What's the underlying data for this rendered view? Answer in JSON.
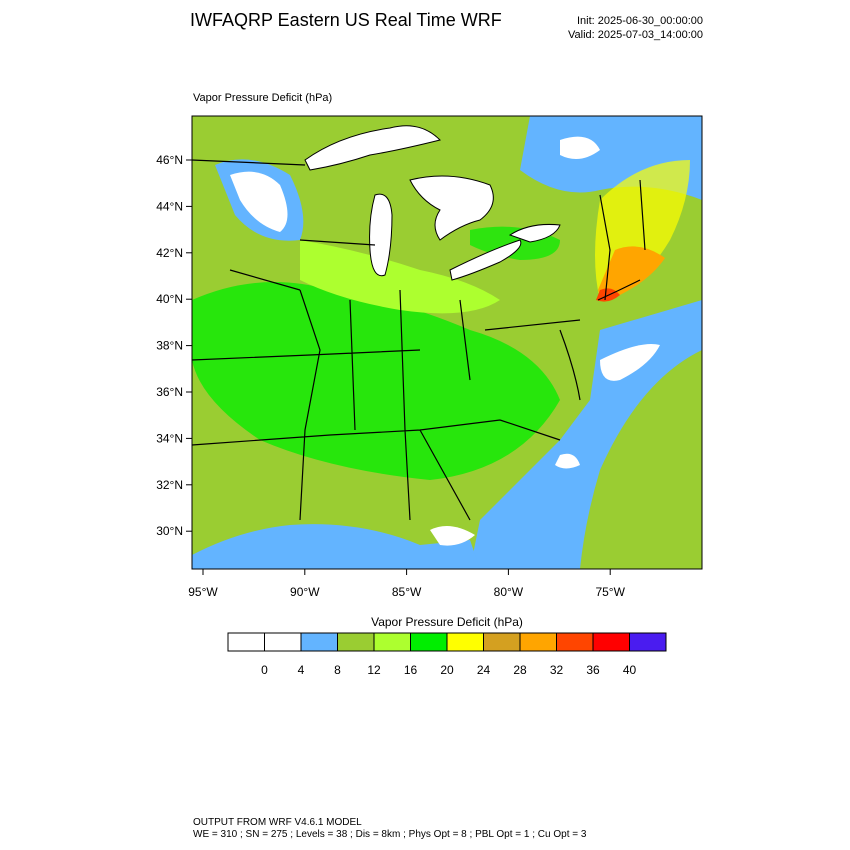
{
  "header": {
    "title": "IWFAQRP Eastern US Real Time WRF",
    "init": "Init: 2025-06-30_00:00:00",
    "valid": "Valid: 2025-07-03_14:00:00"
  },
  "map": {
    "title": "Vapor Pressure Deficit   (hPa)",
    "lat_labels": [
      "46°N",
      "44°N",
      "42°N",
      "40°N",
      "38°N",
      "36°N",
      "34°N",
      "32°N",
      "30°N"
    ],
    "lon_labels": [
      "95°W",
      "90°W",
      "85°W",
      "80°W",
      "75°W"
    ]
  },
  "colorbar": {
    "title": "Vapor Pressure Deficit  (hPa)",
    "colors": [
      "#ffffff",
      "#ffffff",
      "#63b4ff",
      "#9acd32",
      "#adff2f",
      "#00ee00",
      "#ffff00",
      "#d4a020",
      "#ffa500",
      "#ff4500",
      "#ff0000",
      "#4a1cf0"
    ],
    "labels": [
      0,
      4,
      8,
      12,
      16,
      20,
      24,
      28,
      32,
      36,
      40
    ]
  },
  "footer": {
    "line1": "OUTPUT FROM WRF V4.6.1 MODEL",
    "line2": "WE = 310 ; SN = 275 ; Levels = 38 ; Dis = 8km ; Phys Opt = 8 ; PBL Opt = 1 ; Cu Opt = 3"
  }
}
